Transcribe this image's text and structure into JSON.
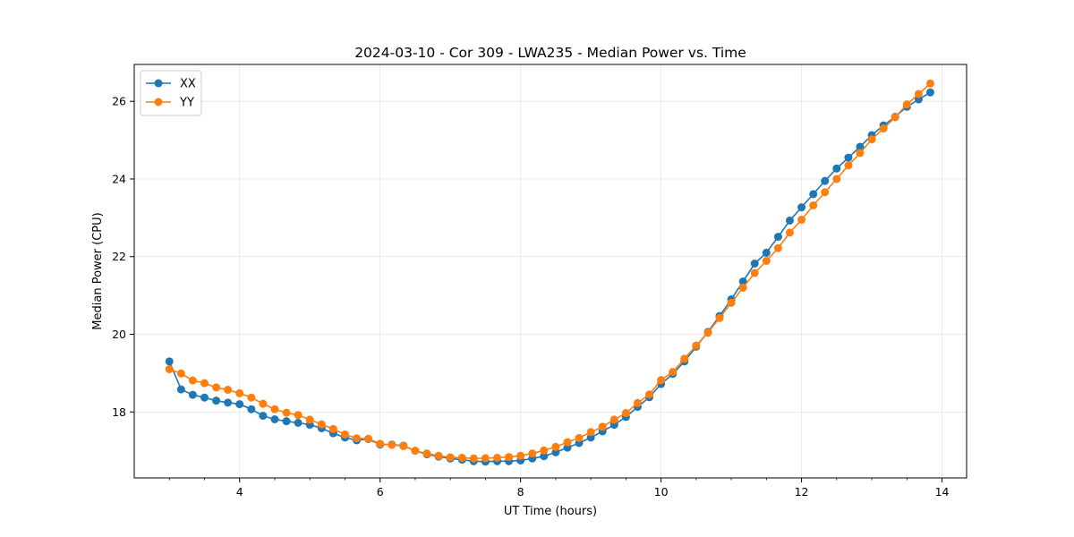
{
  "chart_data": {
    "type": "line",
    "title": "2024-03-10 - Cor 309 - LWA235 - Median Power vs. Time",
    "xlabel": "UT Time (hours)",
    "ylabel": "Median Power (CPU)",
    "xlim": [
      2.5,
      14.35
    ],
    "ylim": [
      16.3,
      26.95
    ],
    "xticks": [
      4,
      6,
      8,
      10,
      12,
      14
    ],
    "xtick_labels": [
      "4",
      "6",
      "8",
      "10",
      "12",
      "14"
    ],
    "yticks": [
      18,
      20,
      22,
      24,
      26
    ],
    "ytick_labels": [
      "18",
      "20",
      "22",
      "24",
      "26"
    ],
    "grid": true,
    "legend_position": "top-left",
    "x": [
      3.0,
      3.167,
      3.333,
      3.5,
      3.667,
      3.833,
      4.0,
      4.167,
      4.333,
      4.5,
      4.667,
      4.833,
      5.0,
      5.167,
      5.333,
      5.5,
      5.667,
      5.833,
      6.0,
      6.167,
      6.333,
      6.5,
      6.667,
      6.833,
      7.0,
      7.167,
      7.333,
      7.5,
      7.667,
      7.833,
      8.0,
      8.167,
      8.333,
      8.5,
      8.667,
      8.833,
      9.0,
      9.167,
      9.333,
      9.5,
      9.667,
      9.833,
      10.0,
      10.167,
      10.333,
      10.5,
      10.667,
      10.833,
      11.0,
      11.167,
      11.333,
      11.5,
      11.667,
      11.833,
      12.0,
      12.167,
      12.333,
      12.5,
      12.667,
      12.833,
      13.0,
      13.167,
      13.333,
      13.5,
      13.667,
      13.833
    ],
    "series": [
      {
        "name": "XX",
        "color": "#1f77b4",
        "values": [
          19.3,
          18.58,
          18.44,
          18.37,
          18.29,
          18.24,
          18.2,
          18.07,
          17.9,
          17.81,
          17.76,
          17.72,
          17.67,
          17.58,
          17.45,
          17.34,
          17.27,
          17.3,
          17.16,
          17.16,
          17.13,
          17.0,
          16.91,
          16.85,
          16.8,
          16.77,
          16.73,
          16.72,
          16.73,
          16.73,
          16.75,
          16.8,
          16.86,
          16.96,
          17.08,
          17.2,
          17.34,
          17.5,
          17.67,
          17.87,
          18.13,
          18.38,
          18.72,
          18.98,
          19.3,
          19.68,
          20.06,
          20.47,
          20.9,
          21.36,
          21.82,
          22.1,
          22.51,
          22.93,
          23.27,
          23.61,
          23.95,
          24.27,
          24.55,
          24.83,
          25.13,
          25.38,
          25.6,
          25.86,
          26.05,
          26.23
        ]
      },
      {
        "name": "YY",
        "color": "#ff7f0e",
        "values": [
          19.1,
          18.99,
          18.81,
          18.74,
          18.63,
          18.57,
          18.48,
          18.37,
          18.21,
          18.07,
          17.98,
          17.92,
          17.8,
          17.68,
          17.56,
          17.42,
          17.32,
          17.31,
          17.18,
          17.15,
          17.12,
          17.0,
          16.93,
          16.87,
          16.83,
          16.82,
          16.8,
          16.81,
          16.82,
          16.84,
          16.87,
          16.93,
          17.01,
          17.1,
          17.22,
          17.33,
          17.48,
          17.62,
          17.8,
          17.97,
          18.23,
          18.45,
          18.82,
          19.03,
          19.37,
          19.71,
          20.04,
          20.42,
          20.81,
          21.2,
          21.58,
          21.89,
          22.22,
          22.62,
          22.95,
          23.32,
          23.66,
          24.0,
          24.35,
          24.67,
          25.02,
          25.3,
          25.59,
          25.92,
          26.19,
          26.46
        ]
      }
    ]
  }
}
